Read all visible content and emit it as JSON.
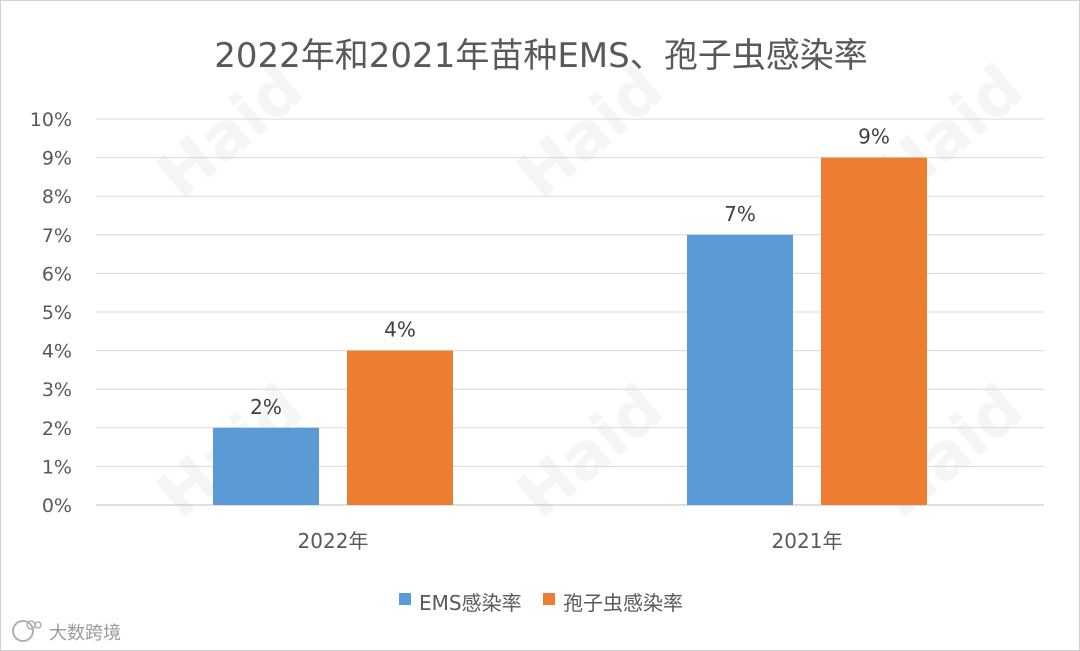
{
  "chart_data": {
    "type": "bar",
    "title": "2022年和2021年苗种EMS、孢子虫感染率",
    "categories": [
      "2022年",
      "2021年"
    ],
    "series": [
      {
        "name": "EMS感染率",
        "values": [
          2,
          7
        ],
        "labels": [
          "2%",
          "7%"
        ],
        "color": "#5b9bd5"
      },
      {
        "name": "孢子虫感染率",
        "values": [
          4,
          9
        ],
        "labels": [
          "4%",
          "9%"
        ],
        "color": "#ed7d31"
      }
    ],
    "ylim": [
      0,
      10
    ],
    "yticks": [
      "0%",
      "1%",
      "2%",
      "3%",
      "4%",
      "5%",
      "6%",
      "7%",
      "8%",
      "9%",
      "10%"
    ],
    "grid": true,
    "legend": "bottom",
    "xlabel": "",
    "ylabel": ""
  },
  "watermark": {
    "text": "Haid",
    "color": "#9aa6b8"
  },
  "source_badge": {
    "text": "大数跨境"
  }
}
